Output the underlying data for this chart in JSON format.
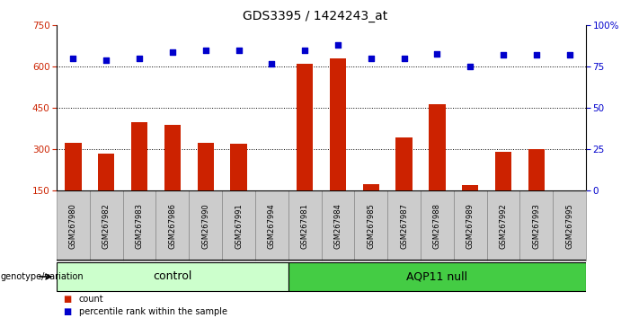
{
  "title": "GDS3395 / 1424243_at",
  "samples": [
    "GSM267980",
    "GSM267982",
    "GSM267983",
    "GSM267986",
    "GSM267990",
    "GSM267991",
    "GSM267994",
    "GSM267981",
    "GSM267984",
    "GSM267985",
    "GSM267987",
    "GSM267988",
    "GSM267989",
    "GSM267992",
    "GSM267993",
    "GSM267995"
  ],
  "counts": [
    325,
    285,
    400,
    390,
    325,
    320,
    152,
    610,
    630,
    175,
    345,
    465,
    170,
    290,
    300,
    152
  ],
  "percentiles": [
    80,
    79,
    80,
    84,
    85,
    85,
    77,
    85,
    88,
    80,
    80,
    83,
    75,
    82,
    82,
    82
  ],
  "control_count": 7,
  "aqp11_count": 9,
  "ylim_left": [
    150,
    750
  ],
  "ylim_right": [
    0,
    100
  ],
  "yticks_left": [
    150,
    300,
    450,
    600,
    750
  ],
  "yticks_right": [
    0,
    25,
    50,
    75,
    100
  ],
  "bar_color": "#cc2200",
  "dot_color": "#0000cc",
  "control_bg": "#ccffcc",
  "aqp11_bg": "#44cc44",
  "label_bg": "#cccccc",
  "legend_count_label": "count",
  "legend_pct_label": "percentile rank within the sample",
  "control_label": "control",
  "aqp11_label": "AQP11 null",
  "genotype_label": "genotype/variation"
}
